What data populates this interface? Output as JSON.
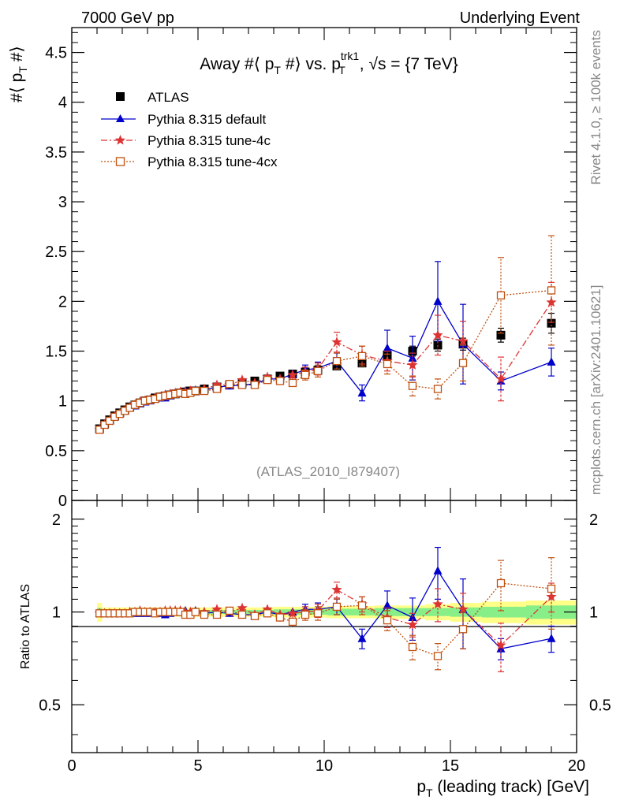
{
  "header": {
    "left": "7000 GeV pp",
    "right": "Underlying Event"
  },
  "side_notes": {
    "rivet": "Rivet 4.1.0, ≥ 100k events",
    "mcplots": "mcplots.cern.ch [arXiv:2401.10621]"
  },
  "chart_data": [
    {
      "type": "scatter",
      "title": "Away #⟨ p_T #⟩ vs. p_T^trk1, √s = {7 TeV}",
      "title_parts": {
        "main": "Away #⟨ p",
        "sub1": "T",
        "mid": " #⟩ vs. p",
        "sup": "trk1",
        "sub2": "T",
        "tail": ", √s = {7 TeV}"
      },
      "ylabel": "#⟨ p_T #⟩",
      "ylabel_parts": {
        "main": "#⟨ p",
        "sub": "T",
        "tail": " #⟩"
      },
      "xlabel": "p_T (leading track) [GeV]",
      "xlabel_parts": {
        "main": "p",
        "sub": "T",
        "tail": " (leading track) [GeV]"
      },
      "xlim": [
        0,
        20
      ],
      "ylim": [
        0,
        4.75
      ],
      "yticks": [
        0,
        0.5,
        1,
        1.5,
        2,
        2.5,
        3,
        3.5,
        4,
        4.5
      ],
      "ytick_labels": [
        "0",
        "0.5",
        "1",
        "1.5",
        "2",
        "2.5",
        "3",
        "3.5",
        "4",
        "4.5"
      ],
      "watermark": "(ATLAS_2010_I879407)",
      "legend": [
        "ATLAS",
        "Pythia 8.315 default",
        "Pythia 8.315 tune-4c",
        "Pythia 8.315 tune-4cx"
      ],
      "x": [
        1.1,
        1.3,
        1.5,
        1.7,
        1.9,
        2.1,
        2.3,
        2.5,
        2.7,
        2.9,
        3.1,
        3.3,
        3.5,
        3.7,
        3.9,
        4.1,
        4.3,
        4.5,
        4.7,
        4.9,
        5.25,
        5.75,
        6.25,
        6.75,
        7.25,
        7.75,
        8.25,
        8.75,
        9.25,
        9.75,
        10.5,
        11.5,
        12.5,
        13.5,
        14.5,
        15.5,
        17.0,
        19.0
      ],
      "series": [
        {
          "name": "ATLAS",
          "color": "#000000",
          "marker": "square",
          "values": [
            0.72,
            0.77,
            0.81,
            0.85,
            0.88,
            0.91,
            0.94,
            0.96,
            0.98,
            1.0,
            1.01,
            1.03,
            1.04,
            1.05,
            1.06,
            1.07,
            1.08,
            1.09,
            1.1,
            1.1,
            1.12,
            1.14,
            1.16,
            1.18,
            1.2,
            1.22,
            1.25,
            1.27,
            1.29,
            1.31,
            1.35,
            1.38,
            1.46,
            1.5,
            1.56,
            1.57,
            1.66,
            1.78
          ],
          "errors": [
            0.01,
            0.01,
            0.01,
            0.01,
            0.01,
            0.01,
            0.01,
            0.01,
            0.01,
            0.01,
            0.01,
            0.01,
            0.01,
            0.01,
            0.01,
            0.01,
            0.01,
            0.01,
            0.01,
            0.01,
            0.01,
            0.01,
            0.01,
            0.02,
            0.02,
            0.02,
            0.02,
            0.02,
            0.02,
            0.03,
            0.03,
            0.03,
            0.04,
            0.05,
            0.06,
            0.06,
            0.07,
            0.1
          ]
        },
        {
          "name": "Pythia 8.315 default",
          "color": "#0000cc",
          "marker": "triangle",
          "values": [
            0.71,
            0.76,
            0.8,
            0.84,
            0.87,
            0.9,
            0.93,
            0.95,
            0.97,
            0.99,
            1.0,
            1.02,
            1.03,
            1.03,
            1.05,
            1.07,
            1.09,
            1.1,
            1.1,
            1.11,
            1.11,
            1.14,
            1.15,
            1.16,
            1.17,
            1.22,
            1.22,
            1.27,
            1.31,
            1.33,
            1.4,
            1.08,
            1.53,
            1.43,
            2.0,
            1.57,
            1.2,
            1.39
          ],
          "errors": [
            0.01,
            0.01,
            0.01,
            0.01,
            0.01,
            0.01,
            0.01,
            0.01,
            0.01,
            0.01,
            0.01,
            0.01,
            0.01,
            0.01,
            0.01,
            0.01,
            0.01,
            0.01,
            0.01,
            0.01,
            0.01,
            0.02,
            0.02,
            0.02,
            0.02,
            0.03,
            0.03,
            0.04,
            0.05,
            0.06,
            0.08,
            0.08,
            0.18,
            0.22,
            0.4,
            0.4,
            0.09,
            0.14
          ]
        },
        {
          "name": "Pythia 8.315 tune-4c",
          "color": "#dd3333",
          "marker": "star",
          "values": [
            0.71,
            0.76,
            0.8,
            0.84,
            0.87,
            0.9,
            0.94,
            0.96,
            0.99,
            1.0,
            1.01,
            1.03,
            1.04,
            1.06,
            1.07,
            1.08,
            1.09,
            1.09,
            1.1,
            1.1,
            1.12,
            1.16,
            1.16,
            1.21,
            1.18,
            1.24,
            1.22,
            1.26,
            1.29,
            1.32,
            1.59,
            1.46,
            1.4,
            1.36,
            1.66,
            1.6,
            1.22,
            1.99
          ],
          "errors": [
            0.01,
            0.01,
            0.01,
            0.01,
            0.01,
            0.01,
            0.01,
            0.01,
            0.01,
            0.01,
            0.01,
            0.01,
            0.01,
            0.01,
            0.01,
            0.01,
            0.01,
            0.01,
            0.01,
            0.01,
            0.01,
            0.02,
            0.02,
            0.02,
            0.02,
            0.03,
            0.03,
            0.04,
            0.05,
            0.06,
            0.1,
            0.09,
            0.1,
            0.12,
            0.2,
            0.2,
            0.22,
            0.2
          ]
        },
        {
          "name": "Pythia 8.315 tune-4cx",
          "color": "#c05010",
          "marker": "open-square",
          "values": [
            0.71,
            0.76,
            0.8,
            0.84,
            0.87,
            0.9,
            0.93,
            0.96,
            0.98,
            1.0,
            1.01,
            1.02,
            1.04,
            1.05,
            1.06,
            1.07,
            1.08,
            1.07,
            1.08,
            1.1,
            1.1,
            1.12,
            1.17,
            1.16,
            1.16,
            1.21,
            1.2,
            1.18,
            1.26,
            1.3,
            1.4,
            1.45,
            1.37,
            1.15,
            1.12,
            1.38,
            2.06,
            2.11
          ],
          "errors": [
            0.01,
            0.01,
            0.01,
            0.01,
            0.01,
            0.01,
            0.01,
            0.01,
            0.01,
            0.01,
            0.01,
            0.01,
            0.01,
            0.01,
            0.01,
            0.01,
            0.01,
            0.01,
            0.01,
            0.01,
            0.01,
            0.02,
            0.02,
            0.02,
            0.02,
            0.03,
            0.03,
            0.04,
            0.05,
            0.06,
            0.08,
            0.1,
            0.1,
            0.1,
            0.1,
            0.18,
            0.38,
            0.55
          ]
        }
      ]
    },
    {
      "type": "scatter",
      "title": "ratio",
      "ylabel": "Ratio to ATLAS",
      "xlim": [
        0,
        20
      ],
      "ylim": [
        0.35,
        2.3
      ],
      "yticks": [
        0.5,
        1,
        2
      ],
      "ytick_labels": [
        "0.5",
        "1",
        "2"
      ],
      "xticks": [
        0,
        5,
        10,
        15,
        20
      ],
      "xtick_labels": [
        "0",
        "5",
        "10",
        "15",
        "20"
      ],
      "x": [
        1.1,
        1.3,
        1.5,
        1.7,
        1.9,
        2.1,
        2.3,
        2.5,
        2.7,
        2.9,
        3.1,
        3.3,
        3.5,
        3.7,
        3.9,
        4.1,
        4.3,
        4.5,
        4.7,
        4.9,
        5.25,
        5.75,
        6.25,
        6.75,
        7.25,
        7.75,
        8.25,
        8.75,
        9.25,
        9.75,
        10.5,
        11.5,
        12.5,
        13.5,
        14.5,
        15.5,
        17.0,
        19.0
      ],
      "band_inner": [
        0.03,
        0.015,
        0.015,
        0.015,
        0.015,
        0.015,
        0.015,
        0.015,
        0.015,
        0.015,
        0.015,
        0.015,
        0.015,
        0.015,
        0.015,
        0.015,
        0.015,
        0.015,
        0.015,
        0.015,
        0.015,
        0.015,
        0.015,
        0.015,
        0.015,
        0.015,
        0.02,
        0.02,
        0.02,
        0.02,
        0.025,
        0.025,
        0.03,
        0.03,
        0.03,
        0.035,
        0.04,
        0.05
      ],
      "band_outer": [
        0.07,
        0.035,
        0.035,
        0.035,
        0.035,
        0.035,
        0.035,
        0.035,
        0.035,
        0.035,
        0.035,
        0.035,
        0.035,
        0.035,
        0.035,
        0.035,
        0.035,
        0.035,
        0.035,
        0.035,
        0.035,
        0.035,
        0.035,
        0.035,
        0.035,
        0.035,
        0.04,
        0.04,
        0.04,
        0.04,
        0.045,
        0.045,
        0.05,
        0.05,
        0.06,
        0.07,
        0.08,
        0.09
      ],
      "series": [
        {
          "name": "Pythia 8.315 default",
          "color": "#0000cc",
          "marker": "triangle",
          "values": [
            0.99,
            0.99,
            0.99,
            0.99,
            0.99,
            0.99,
            0.99,
            0.99,
            0.99,
            0.99,
            0.99,
            0.99,
            0.99,
            0.98,
            0.99,
            1.0,
            1.01,
            1.01,
            1.0,
            1.01,
            0.99,
            1.0,
            0.99,
            0.98,
            0.98,
            1.0,
            0.98,
            1.0,
            1.02,
            1.02,
            1.04,
            0.82,
            1.05,
            0.96,
            1.36,
            1.02,
            0.76,
            0.82
          ],
          "errors": [
            0.01,
            0.01,
            0.01,
            0.01,
            0.01,
            0.01,
            0.01,
            0.01,
            0.01,
            0.01,
            0.01,
            0.01,
            0.01,
            0.01,
            0.01,
            0.01,
            0.01,
            0.01,
            0.01,
            0.01,
            0.01,
            0.02,
            0.02,
            0.02,
            0.02,
            0.03,
            0.03,
            0.03,
            0.04,
            0.05,
            0.06,
            0.06,
            0.12,
            0.15,
            0.26,
            0.26,
            0.06,
            0.08
          ]
        },
        {
          "name": "Pythia 8.315 tune-4c",
          "color": "#dd3333",
          "marker": "star",
          "values": [
            0.99,
            0.99,
            0.99,
            0.99,
            0.99,
            0.99,
            1.0,
            1.0,
            1.01,
            1.0,
            1.0,
            1.0,
            1.0,
            1.01,
            1.01,
            1.01,
            1.01,
            1.0,
            1.0,
            1.0,
            1.0,
            1.02,
            1.0,
            1.03,
            0.98,
            1.02,
            0.98,
            0.99,
            1.0,
            1.01,
            1.18,
            1.06,
            0.96,
            0.91,
            1.06,
            1.02,
            0.78,
            1.12
          ],
          "errors": [
            0.01,
            0.01,
            0.01,
            0.01,
            0.01,
            0.01,
            0.01,
            0.01,
            0.01,
            0.01,
            0.01,
            0.01,
            0.01,
            0.01,
            0.01,
            0.01,
            0.01,
            0.01,
            0.01,
            0.01,
            0.01,
            0.02,
            0.02,
            0.02,
            0.02,
            0.03,
            0.03,
            0.03,
            0.04,
            0.05,
            0.07,
            0.06,
            0.07,
            0.08,
            0.13,
            0.13,
            0.14,
            0.12
          ]
        },
        {
          "name": "Pythia 8.315 tune-4cx",
          "color": "#c05010",
          "marker": "open-square",
          "values": [
            0.99,
            0.99,
            0.99,
            0.99,
            0.99,
            0.99,
            0.99,
            1.0,
            1.0,
            1.0,
            1.0,
            0.99,
            1.0,
            1.0,
            1.0,
            1.0,
            1.0,
            0.98,
            0.98,
            1.0,
            0.98,
            0.98,
            1.01,
            0.98,
            0.97,
            0.99,
            0.96,
            0.93,
            0.98,
            0.99,
            1.04,
            1.05,
            0.94,
            0.77,
            0.72,
            0.88,
            1.24,
            1.19
          ],
          "errors": [
            0.01,
            0.01,
            0.01,
            0.01,
            0.01,
            0.01,
            0.01,
            0.01,
            0.01,
            0.01,
            0.01,
            0.01,
            0.01,
            0.01,
            0.01,
            0.01,
            0.01,
            0.01,
            0.01,
            0.01,
            0.01,
            0.02,
            0.02,
            0.02,
            0.02,
            0.03,
            0.03,
            0.03,
            0.04,
            0.05,
            0.06,
            0.07,
            0.07,
            0.07,
            0.07,
            0.12,
            0.23,
            0.31
          ]
        }
      ]
    }
  ]
}
